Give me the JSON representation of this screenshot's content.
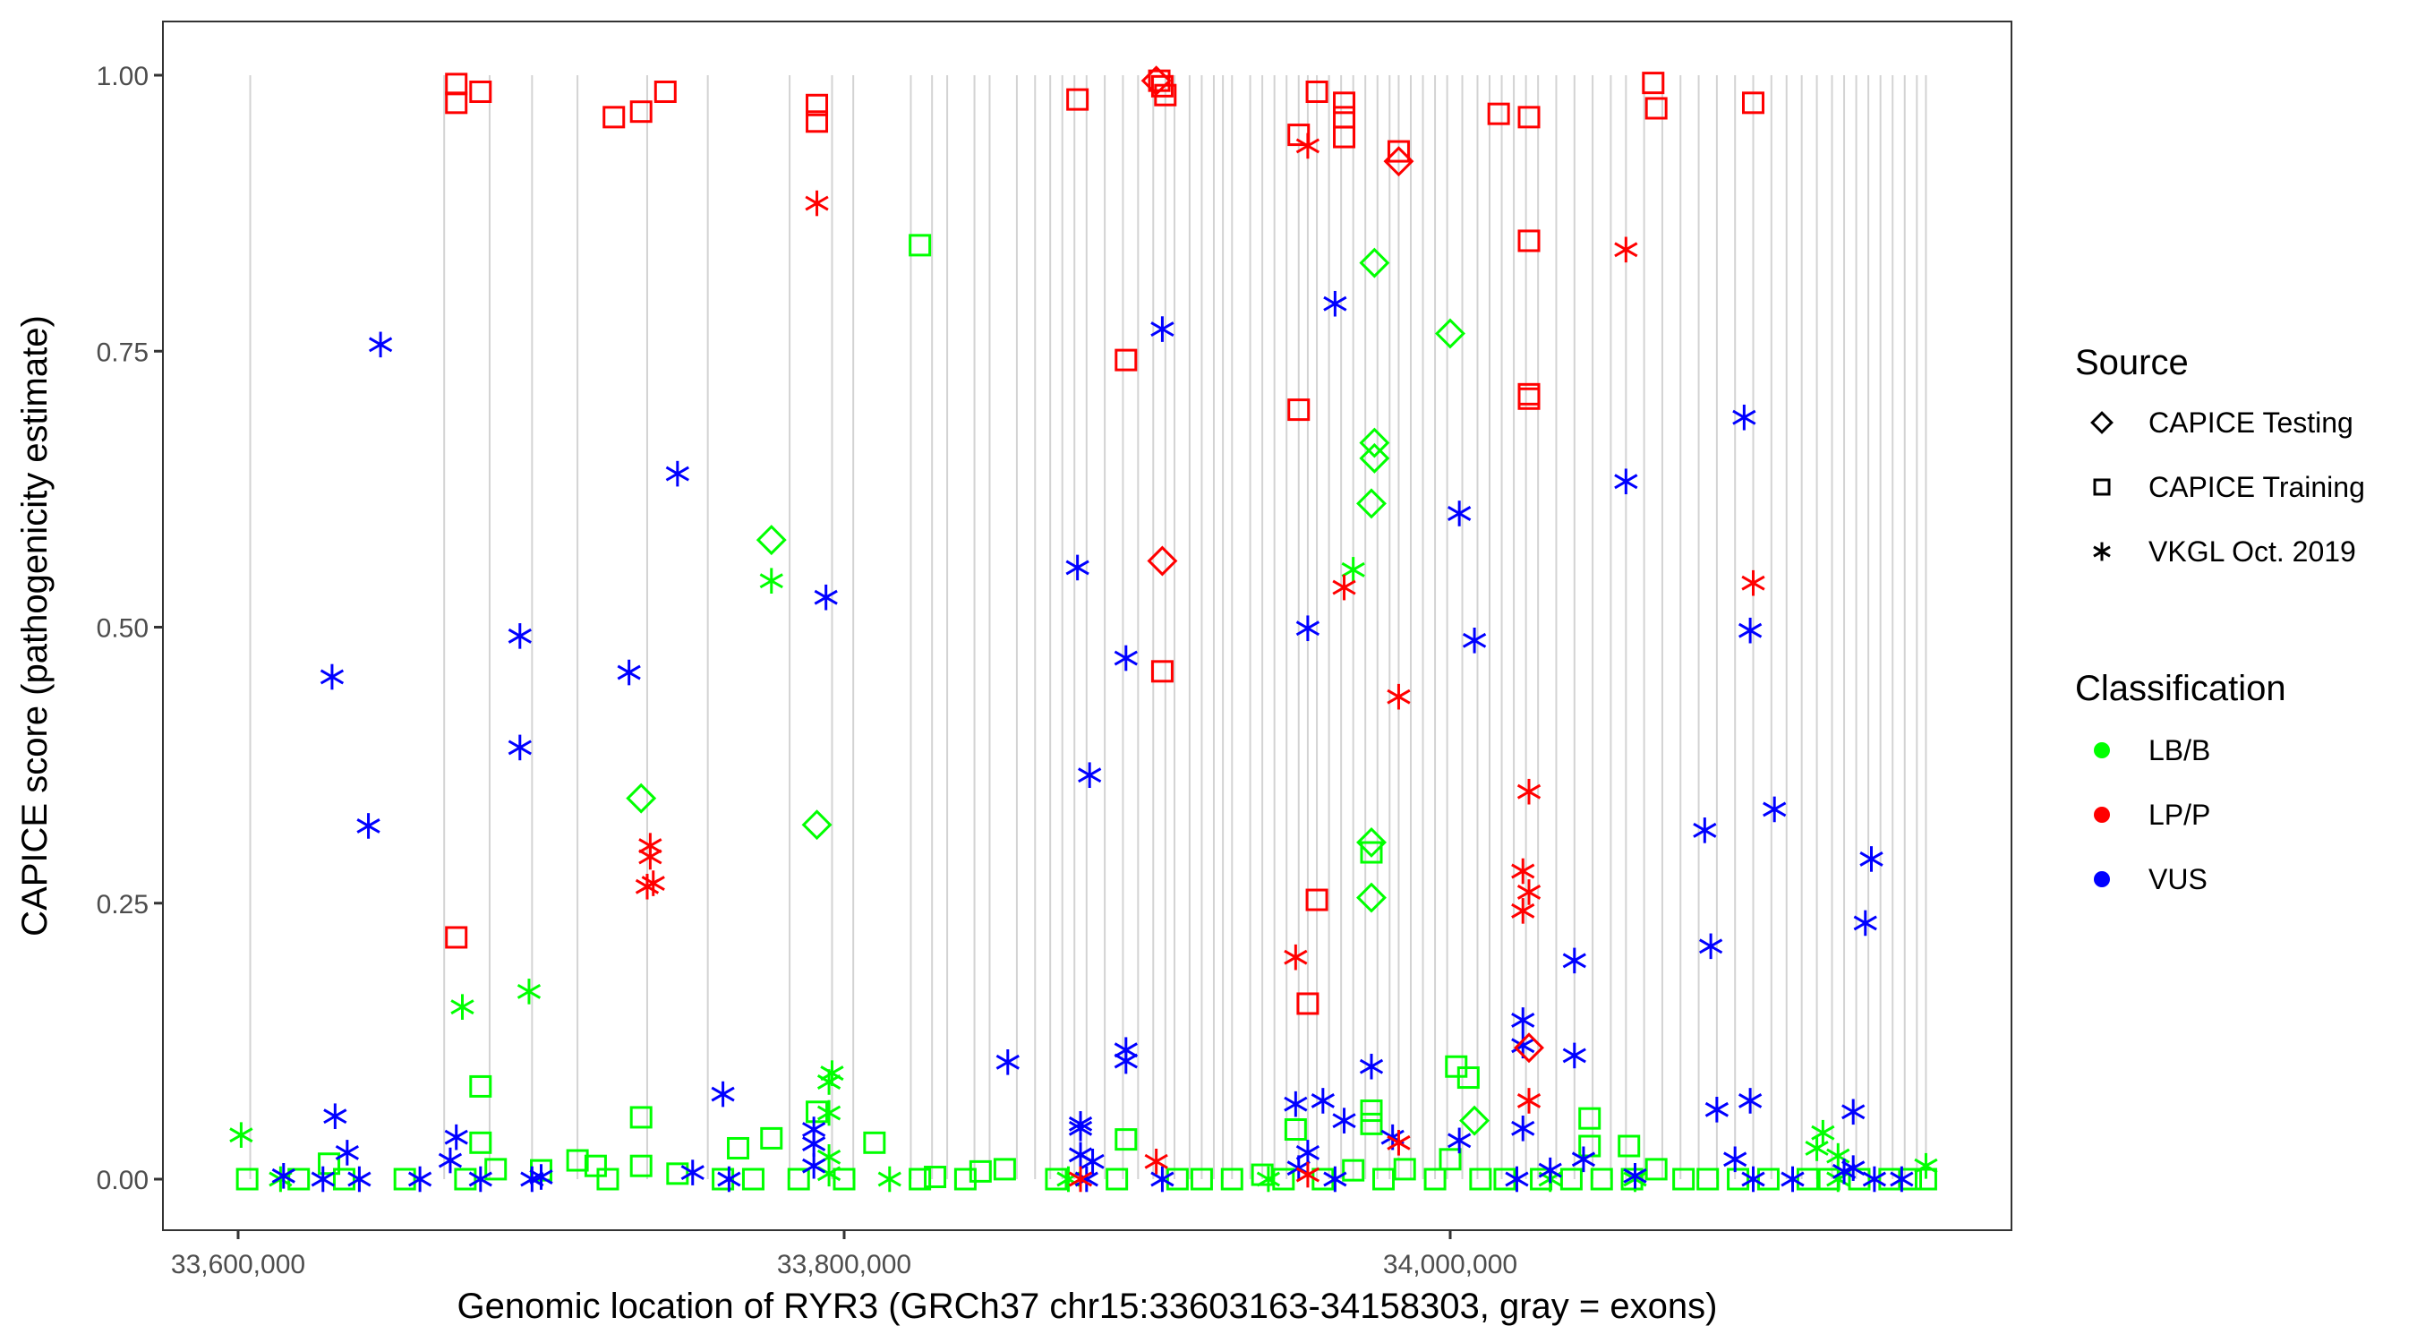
{
  "chart_data": {
    "type": "scatter",
    "title": "",
    "xlabel": "Genomic location of RYR3 (GRCh37 chr15:33603163-34158303, gray = exons)",
    "ylabel": "CAPICE score (pathogenicity estimate)",
    "xlim": [
      33575000,
      34170000
    ],
    "ylim": [
      -0.05,
      1.05
    ],
    "x_ticks": [
      33600000,
      33800000,
      34000000
    ],
    "x_tick_labels": [
      "33,600,000",
      "33,800,000",
      "34,000,000"
    ],
    "y_ticks": [
      0,
      0.25,
      0.5,
      0.75,
      1.0
    ],
    "y_tick_labels": [
      "0.00",
      "0.25",
      "0.50",
      "0.75",
      "1.00"
    ],
    "grid": false,
    "exons_note": "gray vertical lines mark exon positions",
    "exon_positions": [
      33604000,
      33668000,
      33683000,
      33697000,
      33712000,
      33735000,
      33755000,
      33782000,
      33796000,
      33803000,
      33822000,
      33829000,
      33834000,
      33843000,
      33848000,
      33857000,
      33863000,
      33868000,
      33872000,
      33876000,
      33880000,
      33886000,
      33892000,
      33897000,
      33902000,
      33906000,
      33909000,
      33914000,
      33918000,
      33922000,
      33925000,
      33928000,
      33934000,
      33938000,
      33942000,
      33946000,
      33950000,
      33953000,
      33956000,
      33960000,
      33964000,
      33968000,
      33972000,
      33976000,
      33980000,
      33983000,
      33987000,
      33991000,
      33995000,
      33999000,
      34004000,
      34009000,
      34013000,
      34017000,
      34021000,
      34025000,
      34029000,
      34035000,
      34041000,
      34047000,
      34053000,
      34058000,
      34064000,
      34070000,
      34076000,
      34082000,
      34088000,
      34094000,
      34100000,
      34106000,
      34111000,
      34116000,
      34121000,
      34126000,
      34130000,
      34134000,
      34138000,
      34142000,
      34146000,
      34150000,
      34154000,
      34157000
    ],
    "legend": {
      "placement": "right",
      "source_title": "Source",
      "source_items": [
        {
          "label": "CAPICE Testing",
          "shape": "diamond"
        },
        {
          "label": "CAPICE Training",
          "shape": "square"
        },
        {
          "label": "VKGL Oct. 2019",
          "shape": "asterisk"
        }
      ],
      "class_title": "Classification",
      "class_items": [
        {
          "label": "LB/B",
          "color": "#00ff00"
        },
        {
          "label": "LP/P",
          "color": "#ff0000"
        },
        {
          "label": "VUS",
          "color": "#0000ff"
        }
      ]
    },
    "colors": {
      "LB/B": "#00ff00",
      "LP/P": "#ff0000",
      "VUS": "#0000ff"
    },
    "series": [
      {
        "name": "LP/P CAPICE Training",
        "class": "LP/P",
        "source": "CAPICE Training",
        "points": [
          [
            33672000,
            0.992
          ],
          [
            33672000,
            0.975
          ],
          [
            33680000,
            0.985
          ],
          [
            33724000,
            0.962
          ],
          [
            33733000,
            0.967
          ],
          [
            33741000,
            0.985
          ],
          [
            33791000,
            0.973
          ],
          [
            33791000,
            0.958
          ],
          [
            33877000,
            0.978
          ],
          [
            33904000,
            0.995
          ],
          [
            33905000,
            0.99
          ],
          [
            33906000,
            0.982
          ],
          [
            33956000,
            0.985
          ],
          [
            33965000,
            0.975
          ],
          [
            33965000,
            0.962
          ],
          [
            33965000,
            0.944
          ],
          [
            33950000,
            0.946
          ],
          [
            33983000,
            0.931
          ],
          [
            34016000,
            0.965
          ],
          [
            34026000,
            0.962
          ],
          [
            34067000,
            0.993
          ],
          [
            34068000,
            0.97
          ],
          [
            34100000,
            0.975
          ],
          [
            34026000,
            0.85
          ],
          [
            34026000,
            0.711
          ],
          [
            34026000,
            0.707
          ],
          [
            33893000,
            0.742
          ],
          [
            33950000,
            0.697
          ],
          [
            33905000,
            0.46
          ],
          [
            33956000,
            0.253
          ],
          [
            33953000,
            0.159
          ],
          [
            33672000,
            0.219
          ]
        ]
      },
      {
        "name": "LP/P CAPICE Testing",
        "class": "LP/P",
        "source": "CAPICE Testing",
        "points": [
          [
            33903000,
            0.995
          ],
          [
            33983000,
            0.922
          ],
          [
            33905000,
            0.56
          ],
          [
            34026000,
            0.119
          ]
        ]
      },
      {
        "name": "LP/P VKGL",
        "class": "LP/P",
        "source": "VKGL Oct. 2019",
        "points": [
          [
            33791000,
            0.884
          ],
          [
            33953000,
            0.936
          ],
          [
            34058000,
            0.842
          ],
          [
            33965000,
            0.536
          ],
          [
            34100000,
            0.54
          ],
          [
            33983000,
            0.437
          ],
          [
            34026000,
            0.351
          ],
          [
            33736000,
            0.302
          ],
          [
            33736000,
            0.292
          ],
          [
            33735000,
            0.265
          ],
          [
            33737000,
            0.268
          ],
          [
            34024000,
            0.279
          ],
          [
            34026000,
            0.26
          ],
          [
            34024000,
            0.243
          ],
          [
            33949000,
            0.201
          ],
          [
            34026000,
            0.071
          ],
          [
            33983000,
            0.033
          ],
          [
            33903000,
            0.016
          ],
          [
            33953000,
            0.004
          ],
          [
            33878000,
            0.0
          ]
        ]
      },
      {
        "name": "VUS VKGL",
        "class": "VUS",
        "source": "VKGL Oct. 2019",
        "points": [
          [
            33647000,
            0.756
          ],
          [
            33745000,
            0.639
          ],
          [
            33631000,
            0.455
          ],
          [
            33693000,
            0.492
          ],
          [
            33729000,
            0.459
          ],
          [
            33693000,
            0.391
          ],
          [
            33643000,
            0.32
          ],
          [
            33905000,
            0.77
          ],
          [
            33962000,
            0.793
          ],
          [
            33794000,
            0.527
          ],
          [
            33877000,
            0.554
          ],
          [
            33893000,
            0.472
          ],
          [
            33881000,
            0.366
          ],
          [
            33953000,
            0.499
          ],
          [
            34003000,
            0.603
          ],
          [
            34008000,
            0.488
          ],
          [
            34058000,
            0.632
          ],
          [
            34097000,
            0.69
          ],
          [
            34099000,
            0.497
          ],
          [
            34084000,
            0.316
          ],
          [
            34107000,
            0.335
          ],
          [
            34086000,
            0.211
          ],
          [
            34139000,
            0.29
          ],
          [
            34137000,
            0.232
          ],
          [
            34041000,
            0.198
          ],
          [
            34024000,
            0.144
          ],
          [
            34024000,
            0.121
          ],
          [
            34041000,
            0.112
          ],
          [
            33974000,
            0.102
          ],
          [
            33893000,
            0.117
          ],
          [
            33893000,
            0.107
          ],
          [
            33854000,
            0.106
          ],
          [
            33760000,
            0.077
          ],
          [
            34088000,
            0.063
          ],
          [
            34099000,
            0.071
          ],
          [
            34133000,
            0.061
          ],
          [
            33949000,
            0.068
          ],
          [
            33958000,
            0.071
          ],
          [
            33965000,
            0.053
          ],
          [
            34024000,
            0.046
          ],
          [
            33632000,
            0.057
          ],
          [
            33636000,
            0.024
          ],
          [
            33672000,
            0.038
          ],
          [
            33670000,
            0.017
          ],
          [
            33790000,
            0.045
          ],
          [
            33790000,
            0.032
          ],
          [
            33878000,
            0.05
          ],
          [
            33878000,
            0.046
          ],
          [
            33878000,
            0.022
          ],
          [
            33882000,
            0.016
          ],
          [
            33953000,
            0.024
          ],
          [
            33981000,
            0.038
          ],
          [
            34003000,
            0.035
          ],
          [
            34044000,
            0.018
          ],
          [
            34094000,
            0.018
          ],
          [
            33615000,
            0.003
          ],
          [
            33628000,
            0.0
          ],
          [
            33640000,
            0.0
          ],
          [
            33660000,
            0.0
          ],
          [
            33680000,
            0.0
          ],
          [
            33697000,
            0.0
          ],
          [
            33700000,
            0.002
          ],
          [
            33750000,
            0.006
          ],
          [
            33762000,
            0.0
          ],
          [
            33790000,
            0.012
          ],
          [
            33880000,
            0.0
          ],
          [
            33905000,
            0.0
          ],
          [
            33950000,
            0.01
          ],
          [
            33962000,
            0.0
          ],
          [
            34022000,
            0.0
          ],
          [
            34033000,
            0.008
          ],
          [
            34061000,
            0.003
          ],
          [
            34100000,
            0.0
          ],
          [
            34113000,
            0.0
          ],
          [
            34130000,
            0.007
          ],
          [
            34133000,
            0.01
          ],
          [
            34140000,
            0.0
          ],
          [
            34149000,
            0.0
          ]
        ]
      },
      {
        "name": "LB/B CAPICE Training",
        "class": "LB/B",
        "source": "CAPICE Training",
        "points": [
          [
            33825000,
            0.846
          ],
          [
            34002000,
            0.102
          ],
          [
            34006000,
            0.092
          ],
          [
            33974000,
            0.296
          ],
          [
            33974000,
            0.062
          ],
          [
            33974000,
            0.05
          ],
          [
            33680000,
            0.084
          ],
          [
            33680000,
            0.033
          ],
          [
            33733000,
            0.056
          ],
          [
            33776000,
            0.037
          ],
          [
            33791000,
            0.061
          ],
          [
            33810000,
            0.033
          ],
          [
            33949000,
            0.045
          ],
          [
            34046000,
            0.055
          ],
          [
            34046000,
            0.03
          ],
          [
            34059000,
            0.03
          ],
          [
            33893000,
            0.036
          ],
          [
            33630000,
            0.014
          ],
          [
            33765000,
            0.028
          ],
          [
            33603000,
            0.0
          ],
          [
            33620000,
            0.0
          ],
          [
            33635000,
            0.0
          ],
          [
            33655000,
            0.0
          ],
          [
            33675000,
            0.0
          ],
          [
            33685000,
            0.009
          ],
          [
            33700000,
            0.008
          ],
          [
            33712000,
            0.017
          ],
          [
            33718000,
            0.012
          ],
          [
            33722000,
            0.0
          ],
          [
            33733000,
            0.012
          ],
          [
            33745000,
            0.005
          ],
          [
            33760000,
            0.0
          ],
          [
            33770000,
            0.0
          ],
          [
            33785000,
            0.0
          ],
          [
            33800000,
            0.0
          ],
          [
            33825000,
            0.0
          ],
          [
            33830000,
            0.002
          ],
          [
            33840000,
            0.0
          ],
          [
            33845000,
            0.007
          ],
          [
            33853000,
            0.009
          ],
          [
            33870000,
            0.0
          ],
          [
            33890000,
            0.0
          ],
          [
            33910000,
            0.0
          ],
          [
            33918000,
            0.0
          ],
          [
            33928000,
            0.0
          ],
          [
            33938000,
            0.004
          ],
          [
            33945000,
            0.0
          ],
          [
            33958000,
            0.0
          ],
          [
            33968000,
            0.008
          ],
          [
            33978000,
            0.0
          ],
          [
            33985000,
            0.009
          ],
          [
            33995000,
            0.0
          ],
          [
            34000000,
            0.018
          ],
          [
            34010000,
            0.0
          ],
          [
            34018000,
            0.0
          ],
          [
            34030000,
            0.0
          ],
          [
            34040000,
            0.0
          ],
          [
            34050000,
            0.0
          ],
          [
            34060000,
            0.0
          ],
          [
            34068000,
            0.009
          ],
          [
            34077000,
            0.0
          ],
          [
            34085000,
            0.0
          ],
          [
            34095000,
            0.0
          ],
          [
            34105000,
            0.0
          ],
          [
            34118000,
            0.0
          ],
          [
            34125000,
            0.0
          ],
          [
            34135000,
            0.0
          ],
          [
            34145000,
            0.0
          ],
          [
            34152000,
            0.0
          ],
          [
            34157000,
            0.0
          ]
        ]
      },
      {
        "name": "LB/B CAPICE Testing",
        "class": "LB/B",
        "source": "CAPICE Testing",
        "points": [
          [
            33776000,
            0.579
          ],
          [
            33733000,
            0.345
          ],
          [
            33791000,
            0.321
          ],
          [
            33975000,
            0.83
          ],
          [
            34000000,
            0.766
          ],
          [
            33975000,
            0.667
          ],
          [
            33975000,
            0.653
          ],
          [
            33974000,
            0.612
          ],
          [
            33974000,
            0.305
          ],
          [
            33974000,
            0.255
          ],
          [
            34008000,
            0.053
          ]
        ]
      },
      {
        "name": "LB/B VKGL",
        "class": "LB/B",
        "source": "VKGL Oct. 2019",
        "points": [
          [
            33776000,
            0.542
          ],
          [
            33968000,
            0.552
          ],
          [
            33674000,
            0.156
          ],
          [
            33696000,
            0.17
          ],
          [
            33796000,
            0.096
          ],
          [
            33795000,
            0.088
          ],
          [
            33795000,
            0.06
          ],
          [
            33601000,
            0.04
          ],
          [
            34123000,
            0.042
          ],
          [
            34121000,
            0.028
          ],
          [
            34128000,
            0.021
          ],
          [
            33795000,
            0.02
          ],
          [
            33614000,
            0.0
          ],
          [
            33795000,
            0.005
          ],
          [
            33815000,
            0.0
          ],
          [
            33874000,
            0.0
          ],
          [
            33940000,
            0.0
          ],
          [
            34033000,
            0.0
          ],
          [
            34061000,
            0.0
          ],
          [
            34128000,
            0.0
          ],
          [
            34157000,
            0.012
          ]
        ]
      }
    ]
  }
}
